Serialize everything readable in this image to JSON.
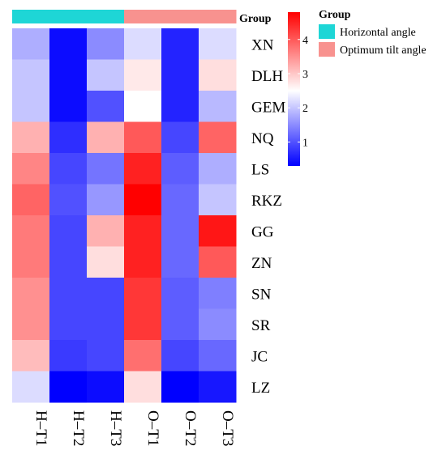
{
  "chart_data": {
    "type": "heatmap",
    "rows": [
      "XN",
      "DLH",
      "GEM",
      "NQ",
      "LS",
      "RKZ",
      "GG",
      "ZN",
      "SN",
      "SR",
      "JC",
      "LZ"
    ],
    "columns": [
      "H–T1",
      "H–T2",
      "H–T3",
      "O–T1",
      "O–T2",
      "O–T3"
    ],
    "values": [
      [
        1.8,
        0.4,
        1.5,
        2.2,
        0.6,
        2.2
      ],
      [
        2.0,
        0.4,
        2.0,
        2.7,
        0.6,
        2.8
      ],
      [
        2.0,
        0.4,
        1.0,
        2.5,
        0.6,
        1.9
      ],
      [
        3.2,
        0.7,
        3.2,
        4.0,
        0.9,
        3.9
      ],
      [
        3.6,
        0.9,
        1.3,
        4.5,
        1.1,
        1.8
      ],
      [
        3.9,
        1.0,
        1.6,
        4.8,
        1.2,
        2.0
      ],
      [
        3.7,
        0.9,
        3.2,
        4.5,
        1.2,
        4.6
      ],
      [
        3.7,
        0.9,
        2.8,
        4.5,
        1.2,
        4.0
      ],
      [
        3.5,
        0.9,
        0.9,
        4.3,
        1.1,
        1.4
      ],
      [
        3.5,
        0.9,
        0.9,
        4.3,
        1.1,
        1.5
      ],
      [
        3.1,
        0.8,
        0.9,
        3.8,
        0.9,
        1.2
      ],
      [
        2.2,
        0.3,
        0.4,
        2.8,
        0.3,
        0.5
      ]
    ],
    "column_groups": [
      "Horizontal angle",
      "Horizontal angle",
      "Horizontal angle",
      "Optimum tilt angle",
      "Optimum tilt angle",
      "Optimum tilt angle"
    ],
    "group_header": "Group",
    "color_scale": {
      "min": 0.3,
      "mid": 2.5,
      "max": 4.8,
      "low": "#0000ff",
      "midcolor": "#ffffff",
      "high": "#ff0000"
    },
    "colorbar_ticks": [
      1,
      2,
      3,
      4
    ],
    "legend": {
      "title": "Group",
      "items": [
        {
          "label": "Horizontal angle",
          "color": "#1ed6d6"
        },
        {
          "label": "Optimum tilt angle",
          "color": "#f8928f"
        }
      ]
    }
  }
}
